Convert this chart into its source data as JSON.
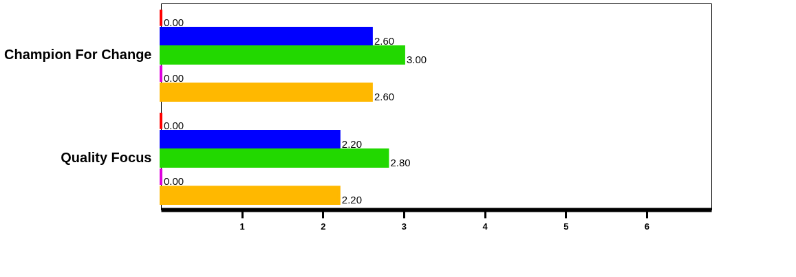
{
  "chart_data": {
    "type": "bar",
    "orientation": "horizontal",
    "categories": [
      "Champion For Change",
      "Quality Focus"
    ],
    "series": [
      {
        "color": "#ff0000",
        "values": [
          0.0,
          0.0
        ],
        "value_labels": [
          "0.00",
          "0.00"
        ]
      },
      {
        "color": "#0000ff",
        "values": [
          2.6,
          2.2
        ],
        "value_labels": [
          "2.60",
          "2.20"
        ]
      },
      {
        "color": "#22d800",
        "values": [
          3.0,
          2.8
        ],
        "value_labels": [
          "3.00",
          "2.80"
        ]
      },
      {
        "color": "#dd00dd",
        "values": [
          0.0,
          0.0
        ],
        "value_labels": [
          "0.00",
          "0.00"
        ]
      },
      {
        "color": "#ffb800",
        "values": [
          2.6,
          2.2
        ],
        "value_labels": [
          "2.60",
          "2.20"
        ]
      }
    ],
    "xlim": [
      0,
      6.8
    ],
    "xticks": [
      1,
      2,
      3,
      4,
      5,
      6
    ],
    "grid": false,
    "legend": false
  }
}
